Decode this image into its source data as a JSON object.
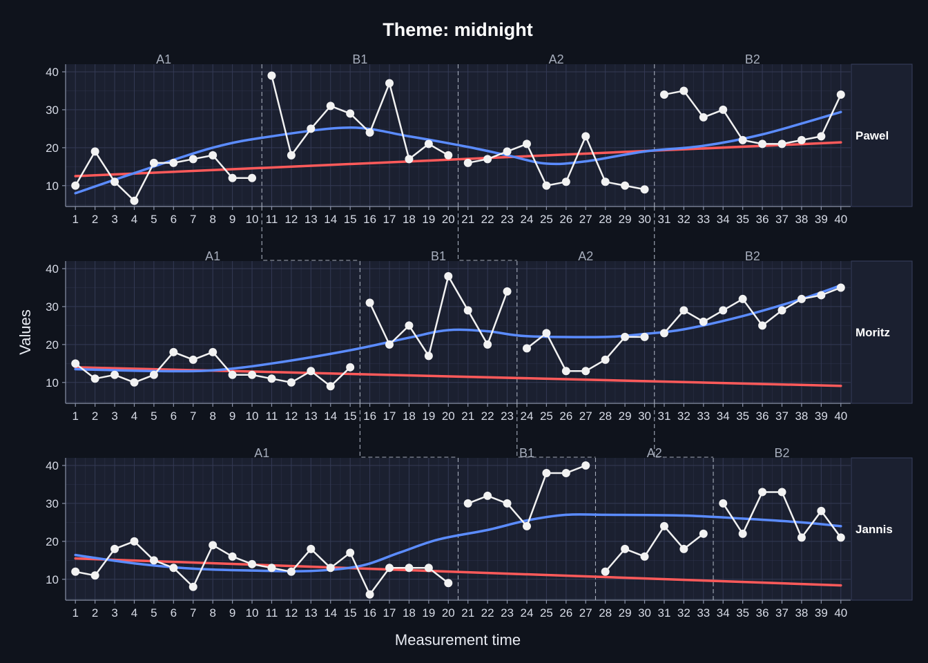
{
  "title": "Theme: midnight",
  "colors": {
    "background": "#0f131c",
    "panel": "#1b2030",
    "grid": "#343a55",
    "data_line": "#f2f2f2",
    "trend": "#ff5a5a",
    "smooth": "#5b8cff"
  },
  "chart_data": {
    "type": "line",
    "title": "Theme: midnight",
    "xlabel": "Measurement time",
    "ylabel": "Values",
    "x_ticks": [
      1,
      2,
      3,
      4,
      5,
      6,
      7,
      8,
      9,
      10,
      11,
      12,
      13,
      14,
      15,
      16,
      17,
      18,
      19,
      20,
      21,
      22,
      23,
      24,
      25,
      26,
      27,
      28,
      29,
      30,
      31,
      32,
      33,
      34,
      35,
      36,
      37,
      38,
      39,
      40
    ],
    "y_ticks": [
      10,
      20,
      30,
      40
    ],
    "ylim": [
      4.5,
      42
    ],
    "xlim": [
      0.5,
      40.5
    ],
    "legend": "none",
    "grid": true,
    "panels": [
      {
        "name": "Pawel",
        "phases": [
          {
            "label": "A1",
            "start": 1,
            "end": 10
          },
          {
            "label": "B1",
            "start": 11,
            "end": 20
          },
          {
            "label": "A2",
            "start": 21,
            "end": 30
          },
          {
            "label": "B2",
            "start": 31,
            "end": 40
          }
        ],
        "values": [
          10,
          19,
          11,
          6,
          16,
          16,
          17,
          18,
          12,
          12,
          39,
          18,
          25,
          31,
          29,
          24,
          37,
          17,
          21,
          18,
          16,
          17,
          19,
          21,
          10,
          11,
          23,
          11,
          10,
          9,
          34,
          35,
          28,
          30,
          22,
          21,
          21,
          22,
          23,
          34
        ],
        "trend": [
          12.5,
          21.4
        ],
        "smooth": [
          [
            1,
            8
          ],
          [
            4,
            13.3
          ],
          [
            8,
            20
          ],
          [
            11,
            23
          ],
          [
            15,
            25.3
          ],
          [
            18,
            23
          ],
          [
            21,
            20.2
          ],
          [
            23,
            18
          ],
          [
            25,
            15.8
          ],
          [
            27,
            16.4
          ],
          [
            30,
            19
          ],
          [
            33,
            20.5
          ],
          [
            36,
            23.5
          ],
          [
            40,
            29.4
          ]
        ]
      },
      {
        "name": "Moritz",
        "phases": [
          {
            "label": "A1",
            "start": 1,
            "end": 15
          },
          {
            "label": "B1",
            "start": 16,
            "end": 23
          },
          {
            "label": "A2",
            "start": 24,
            "end": 30
          },
          {
            "label": "B2",
            "start": 31,
            "end": 40
          }
        ],
        "values": [
          15,
          11,
          12,
          10,
          12,
          18,
          16,
          18,
          12,
          12,
          11,
          10,
          13,
          9,
          14,
          31,
          20,
          25,
          17,
          38,
          29,
          20,
          34,
          19,
          23,
          13,
          13,
          16,
          22,
          22,
          23,
          29,
          26,
          29,
          32,
          25,
          29,
          32,
          33,
          35
        ],
        "trend": [
          14,
          9.1
        ],
        "smooth": [
          [
            1,
            13.5
          ],
          [
            5,
            13
          ],
          [
            8,
            13.2
          ],
          [
            11,
            15
          ],
          [
            15,
            18.5
          ],
          [
            18,
            21.8
          ],
          [
            20,
            23.8
          ],
          [
            22,
            23.5
          ],
          [
            24,
            22.2
          ],
          [
            28,
            22
          ],
          [
            30,
            22.8
          ],
          [
            32,
            24
          ],
          [
            35,
            27.5
          ],
          [
            38,
            32
          ],
          [
            40,
            35.6
          ]
        ]
      },
      {
        "name": "Jannis",
        "phases": [
          {
            "label": "A1",
            "start": 1,
            "end": 20
          },
          {
            "label": "B1",
            "start": 21,
            "end": 27
          },
          {
            "label": "A2",
            "start": 28,
            "end": 33
          },
          {
            "label": "B2",
            "start": 34,
            "end": 40
          }
        ],
        "values": [
          12,
          11,
          18,
          20,
          15,
          13,
          8,
          19,
          16,
          14,
          13,
          12,
          18,
          13,
          17,
          6,
          13,
          13,
          13,
          9,
          30,
          32,
          30,
          24,
          38,
          38,
          40,
          12,
          18,
          16,
          24,
          18,
          22,
          30,
          22,
          33,
          33,
          21,
          28,
          21
        ],
        "trend": [
          15.5,
          8.4
        ],
        "smooth": [
          [
            1,
            16.4
          ],
          [
            4,
            14.2
          ],
          [
            7,
            12.8
          ],
          [
            10,
            12.3
          ],
          [
            13,
            12.2
          ],
          [
            15.5,
            13.5
          ],
          [
            17.5,
            17
          ],
          [
            19.5,
            20.5
          ],
          [
            22,
            23
          ],
          [
            24,
            25.5
          ],
          [
            26,
            27
          ],
          [
            28,
            27
          ],
          [
            32,
            26.8
          ],
          [
            35,
            26
          ],
          [
            38,
            25
          ],
          [
            40,
            24
          ]
        ]
      }
    ]
  }
}
